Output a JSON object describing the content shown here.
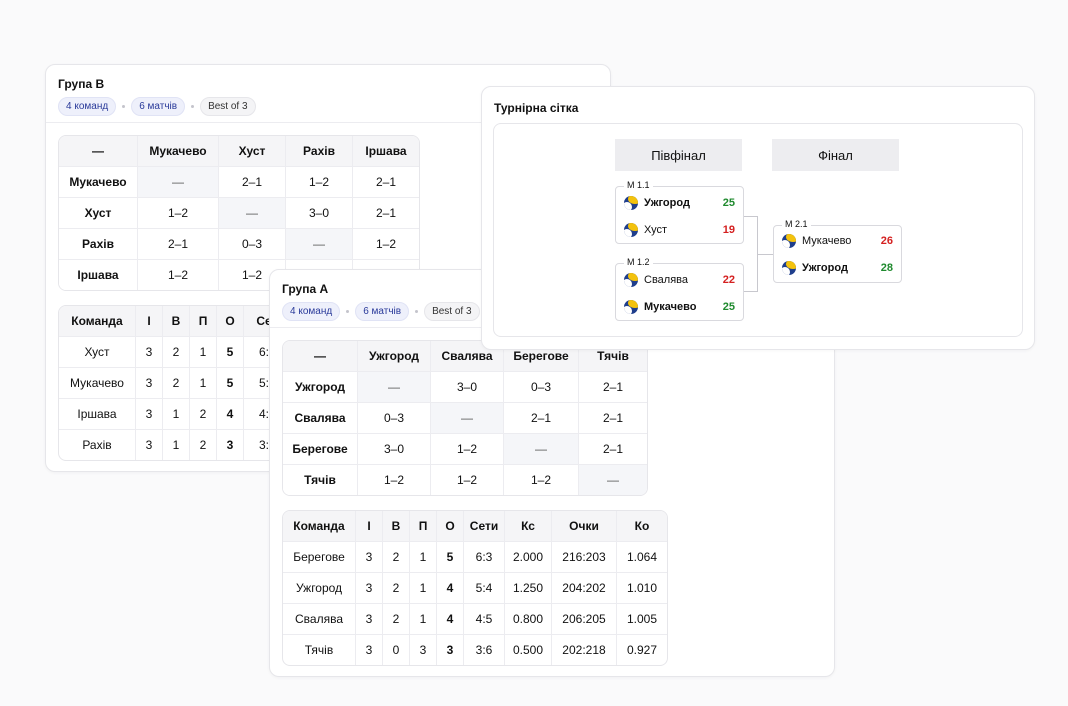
{
  "group_b": {
    "title": "Група B",
    "pill_teams": "4 команд",
    "pill_matches": "6 матчів",
    "pill_format": "Best of 3",
    "matrix_corner": "—",
    "matrix_cols": [
      "Мукачево",
      "Хуст",
      "Рахів",
      "Іршава"
    ],
    "matrix_rows": [
      {
        "team": "Мукачево",
        "cells": [
          "—",
          "2–1",
          "1–2",
          "2–1"
        ]
      },
      {
        "team": "Хуст",
        "cells": [
          "1–2",
          "—",
          "3–0",
          "2–1"
        ]
      },
      {
        "team": "Рахів",
        "cells": [
          "2–1",
          "0–3",
          "—",
          "1–2"
        ]
      },
      {
        "team": "Іршава",
        "cells": [
          "1–2",
          "1–2",
          "",
          ""
        ]
      }
    ],
    "standings_cols": [
      "Команда",
      "І",
      "В",
      "П",
      "О",
      "Се"
    ],
    "standings_rows": [
      [
        "Хуст",
        "3",
        "2",
        "1",
        "5",
        "6:"
      ],
      [
        "Мукачево",
        "3",
        "2",
        "1",
        "5",
        "5:"
      ],
      [
        "Іршава",
        "3",
        "1",
        "2",
        "4",
        "4:"
      ],
      [
        "Рахів",
        "3",
        "1",
        "2",
        "3",
        "3:"
      ]
    ]
  },
  "group_a": {
    "title": "Група A",
    "pill_teams": "4 команд",
    "pill_matches": "6 матчів",
    "pill_format": "Best of 3",
    "matrix_corner": "—",
    "matrix_cols": [
      "Ужгород",
      "Свалява",
      "Берегове",
      "Тячів"
    ],
    "matrix_rows": [
      {
        "team": "Ужгород",
        "cells": [
          "—",
          "3–0",
          "0–3",
          "2–1"
        ]
      },
      {
        "team": "Свалява",
        "cells": [
          "0–3",
          "—",
          "2–1",
          "2–1"
        ]
      },
      {
        "team": "Берегове",
        "cells": [
          "3–0",
          "1–2",
          "—",
          "2–1"
        ]
      },
      {
        "team": "Тячів",
        "cells": [
          "1–2",
          "1–2",
          "1–2",
          "—"
        ]
      }
    ],
    "standings_cols": [
      "Команда",
      "І",
      "В",
      "П",
      "О",
      "Сети",
      "Кс",
      "Очки",
      "Ко"
    ],
    "standings_rows": [
      [
        "Берегове",
        "3",
        "2",
        "1",
        "5",
        "6:3",
        "2.000",
        "216:203",
        "1.064"
      ],
      [
        "Ужгород",
        "3",
        "2",
        "1",
        "4",
        "5:4",
        "1.250",
        "204:202",
        "1.010"
      ],
      [
        "Свалява",
        "3",
        "2",
        "1",
        "4",
        "4:5",
        "0.800",
        "206:205",
        "1.005"
      ],
      [
        "Тячів",
        "3",
        "0",
        "3",
        "3",
        "3:6",
        "0.500",
        "202:218",
        "0.927"
      ]
    ]
  },
  "bracket": {
    "title": "Турнірна сітка",
    "semifinal_label": "Півфінал",
    "final_label": "Фінал",
    "matches": [
      {
        "label": "М 1.1",
        "teams": [
          {
            "name": "Ужгород",
            "score": "25",
            "winner": true
          },
          {
            "name": "Хуст",
            "score": "19",
            "winner": false
          }
        ]
      },
      {
        "label": "М 1.2",
        "teams": [
          {
            "name": "Свалява",
            "score": "22",
            "winner": false
          },
          {
            "name": "Мукачево",
            "score": "25",
            "winner": true
          }
        ]
      },
      {
        "label": "М 2.1",
        "teams": [
          {
            "name": "Мукачево",
            "score": "26",
            "winner": false
          },
          {
            "name": "Ужгород",
            "score": "28",
            "winner": true
          }
        ]
      }
    ],
    "colors": {
      "win": "#1f8a2e",
      "lose": "#d42020"
    }
  }
}
